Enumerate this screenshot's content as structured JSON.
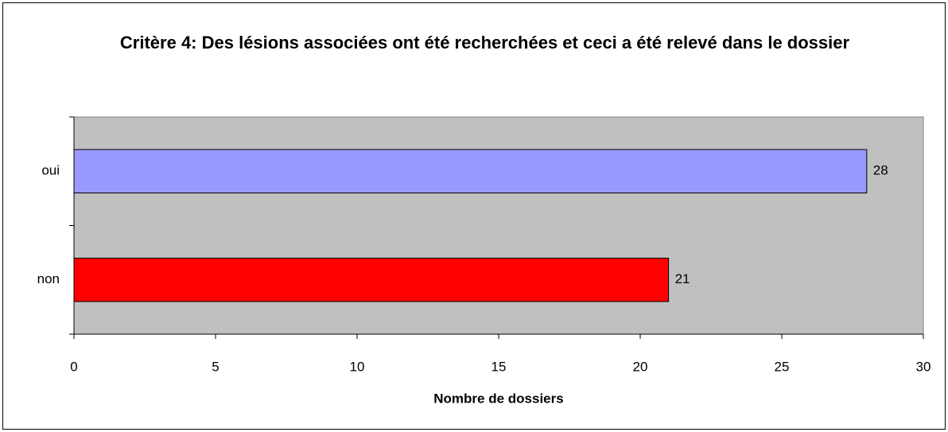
{
  "chart_data": {
    "type": "bar",
    "orientation": "horizontal",
    "title": "Critère 4: Des lésions associées ont été recherchées et ceci a été relevé dans le dossier",
    "x_label": "Nombre de dossiers",
    "categories": [
      "oui",
      "non"
    ],
    "values": [
      28,
      21
    ],
    "colors": [
      "#9999ff",
      "#ff0000"
    ],
    "xlim": [
      0,
      30
    ],
    "xticks": [
      0,
      5,
      10,
      15,
      20,
      25,
      30
    ],
    "grid": false
  }
}
